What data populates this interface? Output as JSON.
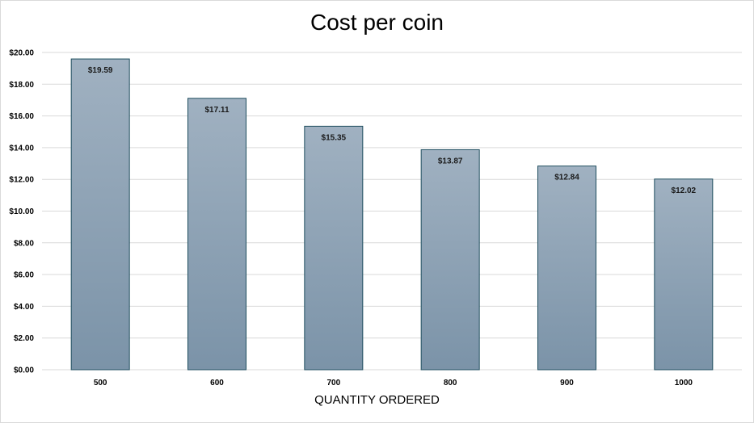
{
  "chart_data": {
    "type": "bar",
    "title": "Cost per coin",
    "xlabel": "QUANTITY ORDERED",
    "ylabel": "",
    "categories": [
      "500",
      "600",
      "700",
      "800",
      "900",
      "1000"
    ],
    "values": [
      19.59,
      17.11,
      15.35,
      13.87,
      12.84,
      12.02
    ],
    "data_labels": [
      "$19.59",
      "$17.11",
      "$15.35",
      "$13.87",
      "$12.84",
      "$12.02"
    ],
    "ylim": [
      0,
      20
    ],
    "y_ticks": [
      0,
      2,
      4,
      6,
      8,
      10,
      12,
      14,
      16,
      18,
      20
    ],
    "y_tick_labels": [
      "$0.00",
      "$2.00",
      "$4.00",
      "$6.00",
      "$8.00",
      "$10.00",
      "$12.00",
      "$14.00",
      "$16.00",
      "$18.00",
      "$20.00"
    ],
    "grid": true,
    "legend": "none",
    "colors": {
      "bar_top": "#a0b1c1",
      "bar_bottom": "#7b93a8",
      "bar_stroke": "#1f4e5f",
      "grid": "#d9d9d9"
    }
  }
}
